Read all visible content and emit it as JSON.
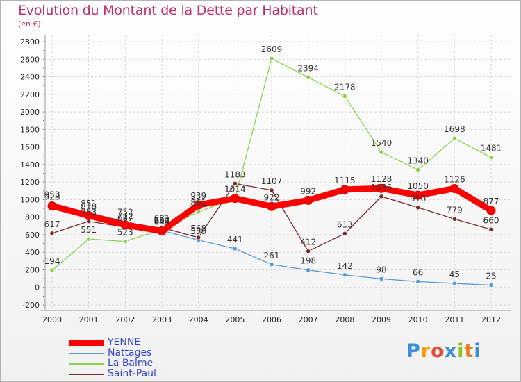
{
  "title": "Evolution du Montant de la Dette par Habitant",
  "subtitle": "(en €)",
  "logo": "Proxiti",
  "chart_data": {
    "type": "line",
    "title": "Evolution du Montant de la Dette par Habitant",
    "subtitle": "(en €)",
    "x": [
      "2000",
      "2001",
      "2002",
      "2003",
      "2004",
      "2005",
      "2006",
      "2007",
      "2008",
      "2009",
      "2010",
      "2011",
      "2012"
    ],
    "ylim": [
      -200,
      2800
    ],
    "yticks": [
      -200,
      0,
      200,
      400,
      600,
      800,
      1000,
      1200,
      1400,
      1600,
      1800,
      2000,
      2200,
      2400,
      2600,
      2800
    ],
    "grid": true,
    "legend_position": "bottom-left",
    "series": [
      {
        "name": "YENNE",
        "color": "#ff0000",
        "values": [
          928,
          818,
          712,
          643,
          939,
          1014,
          922,
          992,
          1115,
          1128,
          1050,
          1126,
          877
        ]
      },
      {
        "name": "Nattages",
        "color": "#5b9bd5",
        "values": [
          953,
          851,
          752,
          649,
          538,
          441,
          261,
          198,
          142,
          98,
          66,
          45,
          25
        ]
      },
      {
        "name": "La Balme",
        "color": "#8fd14f",
        "values": [
          194,
          551,
          523,
          662,
          861,
          1014,
          2609,
          2394,
          2178,
          1540,
          1340,
          1698,
          1481
        ]
      },
      {
        "name": "Saint-Paul",
        "color": "#7a2a2a",
        "values": [
          617,
          753,
          687,
          681,
          568,
          1183,
          1107,
          412,
          613,
          1036,
          910,
          779,
          660
        ]
      }
    ]
  }
}
